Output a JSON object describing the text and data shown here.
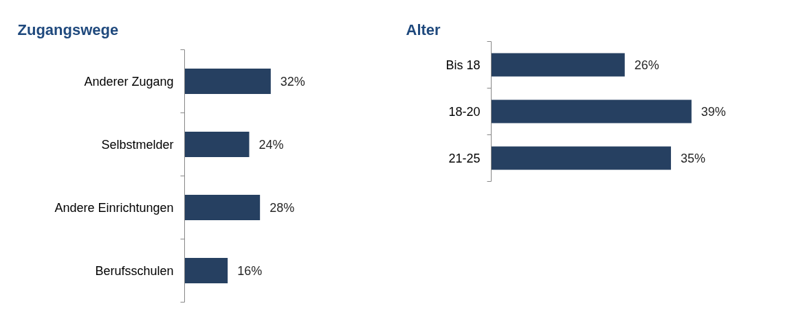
{
  "chart_data": [
    {
      "type": "bar",
      "orientation": "horizontal",
      "title": "Zugangswege",
      "categories": [
        "Anderer Zugang",
        "Selbstmelder",
        "Andere Einrichtungen",
        "Berufsschulen"
      ],
      "values": [
        32,
        24,
        28,
        16
      ],
      "value_labels": [
        "32%",
        "24%",
        "28%",
        "16%"
      ],
      "color": "#264061"
    },
    {
      "type": "bar",
      "orientation": "horizontal",
      "title": "Alter",
      "categories": [
        "Bis 18",
        "18-20",
        "21-25"
      ],
      "values": [
        26,
        39,
        35
      ],
      "value_labels": [
        "26%",
        "39%",
        "35%"
      ],
      "color": "#264061"
    }
  ]
}
